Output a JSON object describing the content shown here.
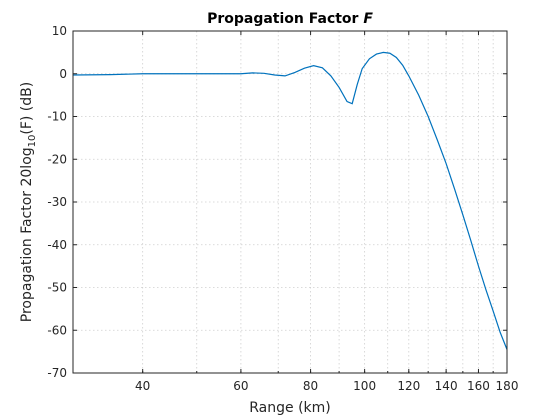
{
  "chart_data": {
    "type": "line",
    "title_prefix": "Propagation Factor",
    "title_symbol": "F",
    "xlabel": "Range (km)",
    "ylabel_prefix": "Propagation Factor 20log",
    "ylabel_sub": "10",
    "ylabel_suffix": "(F) (dB)",
    "xscale": "log",
    "xlim": [
      30,
      180
    ],
    "ylim": [
      -70,
      10
    ],
    "x_ticks": [
      40,
      60,
      80,
      100,
      120,
      140,
      160,
      180
    ],
    "y_ticks": [
      -70,
      -60,
      -50,
      -40,
      -30,
      -20,
      -10,
      0,
      10
    ],
    "grid": "on (dotted, log-spaced minor x grid)",
    "series": [
      {
        "color": "#0072bd",
        "x": [
          30,
          35,
          40,
          45,
          50,
          55,
          60,
          63,
          66,
          69,
          72,
          75,
          78,
          81,
          84,
          87,
          90,
          93,
          95,
          97,
          99,
          102,
          105,
          108,
          111,
          114,
          117,
          120,
          125,
          130,
          135,
          140,
          145,
          150,
          155,
          160,
          165,
          170,
          175,
          180
        ],
        "y": [
          -0.3,
          -0.2,
          0,
          0,
          0,
          0,
          0,
          0.2,
          0.1,
          -0.3,
          -0.5,
          0.3,
          1.3,
          1.9,
          1.4,
          -0.5,
          -3.2,
          -6.5,
          -7.0,
          -2.5,
          1.2,
          3.5,
          4.6,
          5.0,
          4.8,
          3.8,
          2.0,
          -0.5,
          -5.0,
          -10.0,
          -15.5,
          -21.0,
          -27.0,
          -33.0,
          -39.0,
          -45.0,
          -50.5,
          -55.5,
          -60.5,
          -64.5
        ]
      }
    ]
  }
}
